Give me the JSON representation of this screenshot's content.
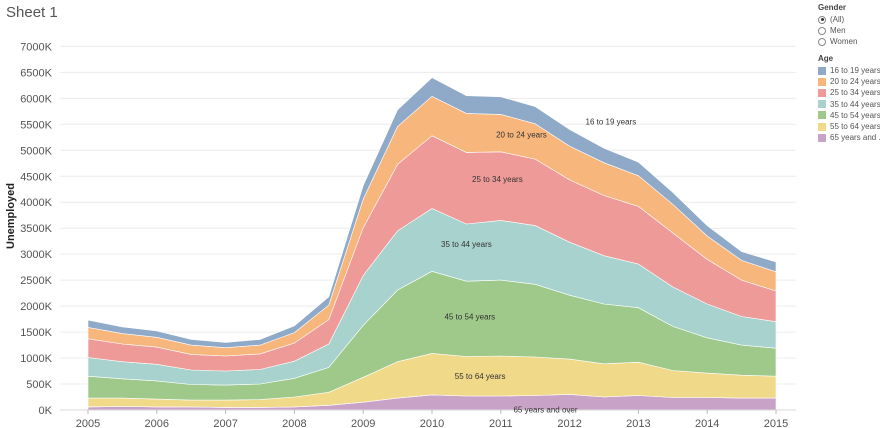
{
  "sheet": {
    "title": "Sheet 1"
  },
  "filters": {
    "gender": {
      "title": "Gender",
      "options": [
        {
          "label": "(All)",
          "selected": true
        },
        {
          "label": "Men",
          "selected": false
        },
        {
          "label": "Women",
          "selected": false
        }
      ]
    },
    "age_legend_title": "Age"
  },
  "chart_data": {
    "type": "area",
    "stacked": true,
    "title": "",
    "ylabel": "Unemployed",
    "xlabel": "",
    "x_ticks": [
      "2005",
      "2006",
      "2007",
      "2008",
      "2009",
      "2010",
      "2011",
      "2012",
      "2013",
      "2014",
      "2015"
    ],
    "y_ticks": [
      "0K",
      "500K",
      "1000K",
      "1500K",
      "2000K",
      "2500K",
      "3000K",
      "3500K",
      "4000K",
      "4500K",
      "5000K",
      "5500K",
      "6000K",
      "6500K",
      "7000K"
    ],
    "ylim": [
      0,
      7000
    ],
    "grid": "horizontal",
    "legend_position": "right",
    "x": [
      2005.0,
      2005.5,
      2006.0,
      2006.5,
      2007.0,
      2007.5,
      2008.0,
      2008.5,
      2009.0,
      2009.5,
      2010.0,
      2010.5,
      2011.0,
      2011.5,
      2012.0,
      2012.5,
      2013.0,
      2013.5,
      2014.0,
      2014.5,
      2015.0
    ],
    "series": [
      {
        "name": "65 years and over",
        "color": "#c9a2c8",
        "values": [
          60,
          70,
          60,
          60,
          50,
          50,
          60,
          90,
          150,
          230,
          290,
          270,
          270,
          280,
          300,
          250,
          280,
          240,
          240,
          230,
          230
        ]
      },
      {
        "name": "55 to 64 years",
        "color": "#f1d98a",
        "values": [
          170,
          160,
          150,
          130,
          140,
          150,
          190,
          250,
          480,
          700,
          800,
          760,
          770,
          740,
          680,
          640,
          640,
          520,
          470,
          440,
          420
        ]
      },
      {
        "name": "45 to 54 years",
        "color": "#9fc98a",
        "values": [
          420,
          370,
          350,
          300,
          290,
          300,
          360,
          480,
          1000,
          1380,
          1580,
          1450,
          1460,
          1400,
          1230,
          1150,
          1050,
          850,
          680,
          580,
          540
        ]
      },
      {
        "name": "35 to 44 years",
        "color": "#a8d2cd",
        "values": [
          360,
          330,
          320,
          280,
          270,
          280,
          330,
          450,
          960,
          1140,
          1210,
          1100,
          1150,
          1130,
          1020,
          930,
          840,
          760,
          650,
          550,
          510
        ]
      },
      {
        "name": "25 to 34 years",
        "color": "#ee9a98",
        "values": [
          360,
          340,
          330,
          300,
          290,
          300,
          350,
          470,
          920,
          1280,
          1400,
          1380,
          1320,
          1280,
          1200,
          1160,
          1110,
          1040,
          860,
          700,
          590
        ]
      },
      {
        "name": "20 to 24 years",
        "color": "#f7b67c",
        "values": [
          220,
          200,
          190,
          180,
          160,
          170,
          200,
          280,
          550,
          730,
          760,
          750,
          720,
          680,
          650,
          630,
          590,
          550,
          450,
          380,
          370
        ]
      },
      {
        "name": "16 to 19 years",
        "color": "#8fa9c8",
        "values": [
          140,
          130,
          120,
          110,
          100,
          110,
          130,
          160,
          260,
          320,
          360,
          340,
          340,
          330,
          320,
          280,
          260,
          230,
          200,
          170,
          190
        ]
      }
    ],
    "band_labels": [
      {
        "text": "16 to 19 years",
        "x": 2012.6,
        "y": 5550
      },
      {
        "text": "20 to 24 years",
        "x": 2011.3,
        "y": 5300
      },
      {
        "text": "25 to 34 years",
        "x": 2010.95,
        "y": 4450
      },
      {
        "text": "35 to 44 years",
        "x": 2010.5,
        "y": 3200
      },
      {
        "text": "45 to 54 years",
        "x": 2010.55,
        "y": 1800
      },
      {
        "text": "55 to 64 years",
        "x": 2010.7,
        "y": 650
      },
      {
        "text": "65 years and over",
        "x": 2011.65,
        "y": 10
      }
    ],
    "legend_entries": [
      "16 to 19 years",
      "20 to 24 years",
      "25 to 34 years",
      "35 to 44 years",
      "45 to 54 years",
      "55 to 64 years",
      "65 years and ..."
    ]
  }
}
